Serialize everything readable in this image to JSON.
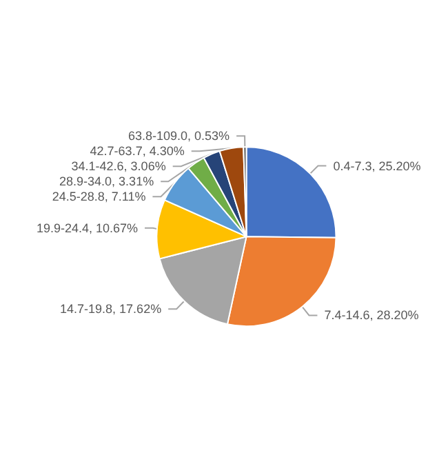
{
  "chart_data": {
    "type": "pie",
    "categories": [
      "0.4-7.3",
      "7.4-14.6",
      "14.7-19.8",
      "19.9-24.4",
      "24.5-28.8",
      "28.9-34.0",
      "34.1-42.6",
      "42.7-63.7",
      "63.8-109.0"
    ],
    "values": [
      25.2,
      28.2,
      17.62,
      10.67,
      7.11,
      3.31,
      3.06,
      4.3,
      0.53
    ],
    "value_labels": [
      "25.20%",
      "28.20%",
      "17.62%",
      "10.67%",
      "7.11%",
      "3.31%",
      "3.06%",
      "4.30%",
      "0.53%"
    ],
    "colors": [
      "#4472c4",
      "#ed7d31",
      "#a5a5a5",
      "#ffc000",
      "#5b9bd5",
      "#70ad47",
      "#264478",
      "#9e480e",
      "#636363"
    ],
    "legend": false
  }
}
